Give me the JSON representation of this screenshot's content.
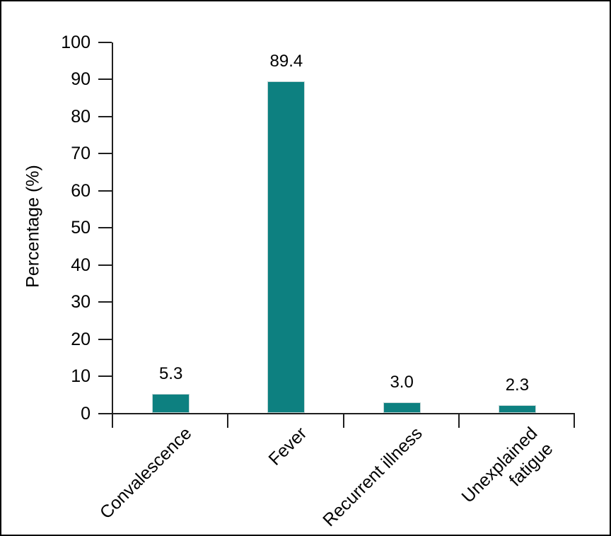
{
  "chart_data": {
    "type": "bar",
    "categories": [
      "Convalescence",
      "Fever",
      "Recurrent illness",
      "Unexplained\nfatigue"
    ],
    "values": [
      5.3,
      89.4,
      3.0,
      2.3
    ],
    "value_labels": [
      "5.3",
      "89.4",
      "3.0",
      "2.3"
    ],
    "title": "",
    "xlabel": "",
    "ylabel": "Percentage (%)",
    "ylim": [
      0,
      100
    ],
    "yticks": [
      0,
      10,
      20,
      30,
      40,
      50,
      60,
      70,
      80,
      90,
      100
    ],
    "grid": false,
    "legend_position": "none",
    "bar_color": "#0d8080",
    "axis_color": "#1f1f1f",
    "text_color": "#000000",
    "frame_color": "#000000",
    "background_color": "#ffffff"
  }
}
